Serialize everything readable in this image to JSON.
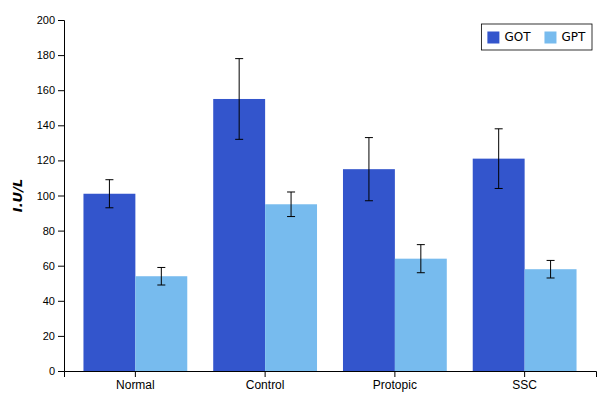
{
  "chart_data": {
    "type": "bar",
    "categories": [
      "Normal",
      "Control",
      "Protopic",
      "SSC"
    ],
    "series": [
      {
        "name": "GOT",
        "color": "#3355CC",
        "values": [
          101,
          155,
          115,
          121
        ],
        "errors": [
          8,
          23,
          18,
          17
        ]
      },
      {
        "name": "GPT",
        "color": "#77BBEE",
        "values": [
          54,
          95,
          64,
          58
        ],
        "errors": [
          5,
          7,
          8,
          5
        ]
      }
    ],
    "ylabel": "I.U/L",
    "ylim": [
      0,
      200
    ],
    "yticks": [
      0,
      20,
      40,
      60,
      80,
      100,
      120,
      140,
      160,
      180,
      200
    ],
    "grid": false,
    "legend": "upper right"
  }
}
